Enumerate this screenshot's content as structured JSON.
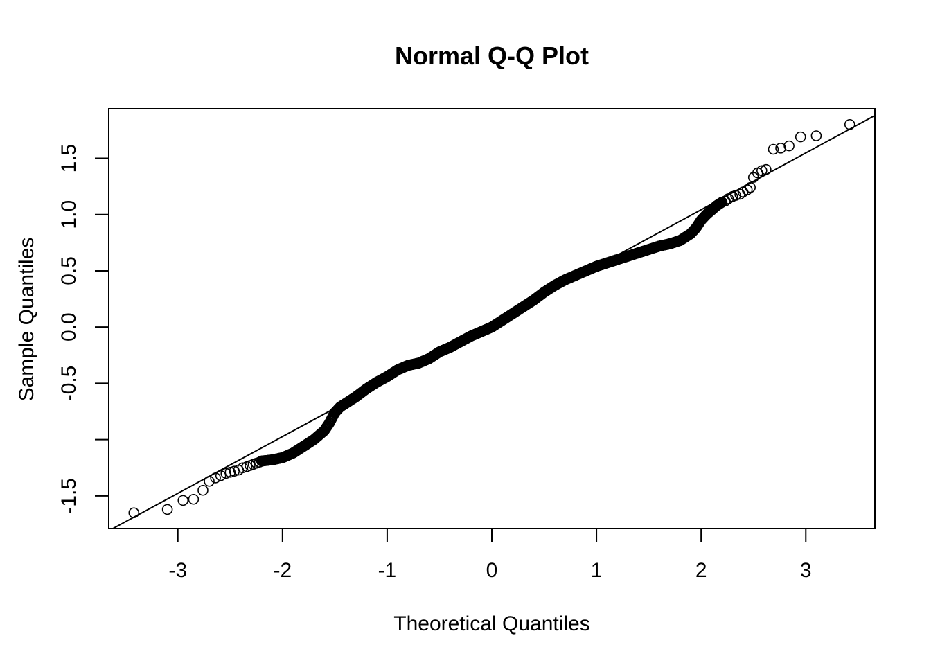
{
  "chart_data": {
    "type": "scatter",
    "title": "Normal Q-Q Plot",
    "xlabel": "Theoretical Quantiles",
    "ylabel": "Sample Quantiles",
    "xlim": [
      -3.66,
      3.66
    ],
    "ylim": [
      -1.79,
      1.94
    ],
    "x_ticks": [
      -3,
      -2,
      -1,
      0,
      1,
      2,
      3
    ],
    "x_tick_labels": [
      "-3",
      "-2",
      "-1",
      "0",
      "1",
      "2",
      "3"
    ],
    "y_ticks": [
      -1.5,
      -1.0,
      -0.5,
      0.0,
      0.5,
      1.0,
      1.5
    ],
    "y_tick_labels": [
      "-1.5",
      "",
      "-0.5",
      "0.0",
      "0.5",
      "1.0",
      "1.5"
    ],
    "grid": false,
    "marker": "open-circle",
    "colors": {
      "points": "#000000",
      "line": "#000000",
      "frame": "#000000"
    },
    "reference_line": {
      "x": [
        -3.66,
        3.66
      ],
      "y": [
        -1.81,
        1.88
      ]
    },
    "tail_points": {
      "x": [
        -3.42,
        -3.1,
        -2.95,
        -2.85,
        -2.76,
        -2.7,
        -2.64,
        -2.59,
        -2.54,
        -2.5,
        -2.46,
        -2.42,
        -2.38,
        -2.34,
        -2.31,
        -2.28,
        -2.25,
        -2.22,
        -2.19,
        2.2,
        2.23,
        2.26,
        2.3,
        2.33,
        2.37,
        2.4,
        2.44,
        2.47,
        2.5,
        2.54,
        2.58,
        2.62,
        2.69,
        2.76,
        2.84,
        2.95,
        3.1,
        3.42
      ],
      "y": [
        -1.65,
        -1.62,
        -1.54,
        -1.53,
        -1.45,
        -1.37,
        -1.34,
        -1.32,
        -1.3,
        -1.29,
        -1.28,
        -1.27,
        -1.25,
        -1.24,
        -1.23,
        -1.22,
        -1.21,
        -1.2,
        -1.19,
        1.11,
        1.12,
        1.14,
        1.16,
        1.17,
        1.18,
        1.2,
        1.22,
        1.24,
        1.33,
        1.37,
        1.39,
        1.4,
        1.58,
        1.59,
        1.61,
        1.69,
        1.7,
        1.8
      ]
    },
    "body_curve": {
      "x": [
        -2.2,
        -2.1,
        -2.0,
        -1.9,
        -1.8,
        -1.7,
        -1.6,
        -1.55,
        -1.5,
        -1.45,
        -1.4,
        -1.3,
        -1.2,
        -1.1,
        -1.0,
        -0.9,
        -0.8,
        -0.7,
        -0.6,
        -0.5,
        -0.4,
        -0.3,
        -0.2,
        -0.1,
        0.0,
        0.1,
        0.2,
        0.3,
        0.4,
        0.5,
        0.6,
        0.7,
        0.8,
        0.9,
        1.0,
        1.1,
        1.2,
        1.3,
        1.4,
        1.5,
        1.6,
        1.7,
        1.8,
        1.85,
        1.9,
        1.95,
        2.0,
        2.05,
        2.1,
        2.15,
        2.2
      ],
      "y": [
        -1.19,
        -1.18,
        -1.16,
        -1.12,
        -1.06,
        -1.0,
        -0.92,
        -0.85,
        -0.76,
        -0.71,
        -0.68,
        -0.62,
        -0.55,
        -0.49,
        -0.44,
        -0.38,
        -0.34,
        -0.32,
        -0.28,
        -0.22,
        -0.18,
        -0.13,
        -0.08,
        -0.04,
        0.0,
        0.06,
        0.12,
        0.18,
        0.24,
        0.31,
        0.37,
        0.42,
        0.46,
        0.5,
        0.54,
        0.57,
        0.6,
        0.63,
        0.66,
        0.69,
        0.72,
        0.74,
        0.77,
        0.8,
        0.83,
        0.88,
        0.95,
        1.0,
        1.04,
        1.08,
        1.11
      ]
    }
  }
}
